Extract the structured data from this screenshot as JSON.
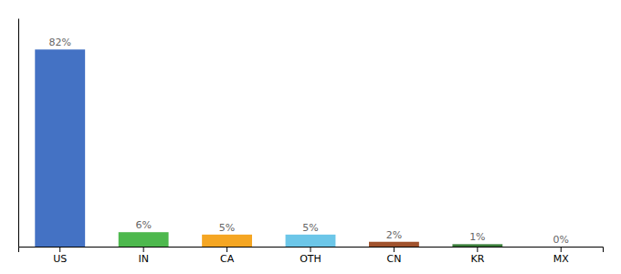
{
  "chart_data": {
    "type": "bar",
    "categories": [
      "US",
      "IN",
      "CA",
      "OTH",
      "CN",
      "KR",
      "MX"
    ],
    "values": [
      82,
      6,
      5,
      5,
      2,
      1,
      0
    ],
    "value_labels": [
      "82%",
      "6%",
      "5%",
      "5%",
      "2%",
      "1%",
      "0%"
    ],
    "colors": [
      "#4472c4",
      "#4db84d",
      "#f5a623",
      "#6cc6e8",
      "#a0522d",
      "#3a7d3a",
      "#bbbbbb"
    ],
    "ylim": [
      0,
      95
    ],
    "data_labels": true,
    "tick_labels": "x"
  }
}
